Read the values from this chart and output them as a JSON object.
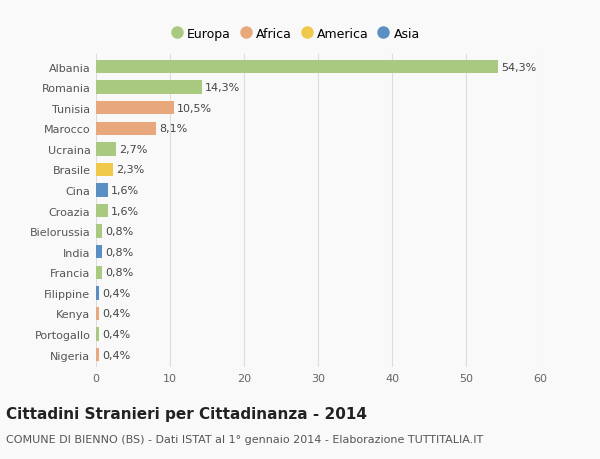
{
  "categories": [
    "Albania",
    "Romania",
    "Tunisia",
    "Marocco",
    "Ucraina",
    "Brasile",
    "Cina",
    "Croazia",
    "Bielorussia",
    "India",
    "Francia",
    "Filippine",
    "Kenya",
    "Portogallo",
    "Nigeria"
  ],
  "values": [
    54.3,
    14.3,
    10.5,
    8.1,
    2.7,
    2.3,
    1.6,
    1.6,
    0.8,
    0.8,
    0.8,
    0.4,
    0.4,
    0.4,
    0.4
  ],
  "labels": [
    "54,3%",
    "14,3%",
    "10,5%",
    "8,1%",
    "2,7%",
    "2,3%",
    "1,6%",
    "1,6%",
    "0,8%",
    "0,8%",
    "0,8%",
    "0,4%",
    "0,4%",
    "0,4%",
    "0,4%"
  ],
  "continents": [
    "Europa",
    "Europa",
    "Africa",
    "Africa",
    "Europa",
    "America",
    "Asia",
    "Europa",
    "Europa",
    "Asia",
    "Europa",
    "Asia",
    "Africa",
    "Europa",
    "Africa"
  ],
  "continent_colors": {
    "Europa": "#a8c97f",
    "Africa": "#e8a87c",
    "America": "#f0c84a",
    "Asia": "#5b8fc4"
  },
  "legend_order": [
    "Europa",
    "Africa",
    "America",
    "Asia"
  ],
  "title": "Cittadini Stranieri per Cittadinanza - 2014",
  "subtitle": "COMUNE DI BIENNO (BS) - Dati ISTAT al 1° gennaio 2014 - Elaborazione TUTTITALIA.IT",
  "xlim": [
    0,
    60
  ],
  "xticks": [
    0,
    10,
    20,
    30,
    40,
    50,
    60
  ],
  "background_color": "#f9f9f9",
  "grid_color": "#dddddd",
  "bar_height": 0.65,
  "title_fontsize": 11,
  "subtitle_fontsize": 8,
  "label_fontsize": 8,
  "tick_fontsize": 8,
  "legend_fontsize": 9
}
